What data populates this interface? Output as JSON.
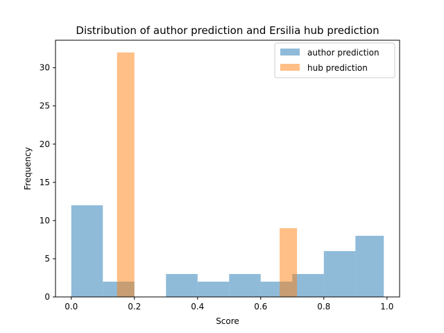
{
  "chart_data": {
    "type": "bar",
    "title": "Distribution of author prediction and Ersilia hub prediction",
    "xlabel": "Score",
    "ylabel": "Frequency",
    "xlim": [
      -0.05,
      1.04
    ],
    "ylim": [
      0,
      33.6
    ],
    "xticks": [
      "0.0",
      "0.2",
      "0.4",
      "0.6",
      "0.8",
      "1.0"
    ],
    "yticks": [
      "0",
      "5",
      "10",
      "15",
      "20",
      "25",
      "30"
    ],
    "grid": false,
    "legend_position": "top-right",
    "series": [
      {
        "name": "author prediction",
        "color": "#1f77b4",
        "opacity": 0.5,
        "bins": [
          {
            "x0": 0.0,
            "x1": 0.1,
            "count": 12
          },
          {
            "x0": 0.1,
            "x1": 0.2,
            "count": 2
          },
          {
            "x0": 0.2,
            "x1": 0.3,
            "count": 0
          },
          {
            "x0": 0.3,
            "x1": 0.4,
            "count": 3
          },
          {
            "x0": 0.4,
            "x1": 0.5,
            "count": 2
          },
          {
            "x0": 0.5,
            "x1": 0.6,
            "count": 3
          },
          {
            "x0": 0.6,
            "x1": 0.7,
            "count": 2
          },
          {
            "x0": 0.7,
            "x1": 0.8,
            "count": 3
          },
          {
            "x0": 0.8,
            "x1": 0.9,
            "count": 6
          },
          {
            "x0": 0.9,
            "x1": 0.99,
            "count": 8
          }
        ]
      },
      {
        "name": "hub prediction",
        "color": "#ff7f0e",
        "opacity": 0.5,
        "bins": [
          {
            "x0": 0.145,
            "x1": 0.2,
            "count": 32
          },
          {
            "x0": 0.2,
            "x1": 0.2555,
            "count": 0
          },
          {
            "x0": 0.2555,
            "x1": 0.311,
            "count": 0
          },
          {
            "x0": 0.311,
            "x1": 0.3665,
            "count": 0
          },
          {
            "x0": 0.3665,
            "x1": 0.422,
            "count": 0
          },
          {
            "x0": 0.422,
            "x1": 0.4775,
            "count": 0
          },
          {
            "x0": 0.4775,
            "x1": 0.533,
            "count": 0
          },
          {
            "x0": 0.533,
            "x1": 0.5885,
            "count": 0
          },
          {
            "x0": 0.5885,
            "x1": 0.644,
            "count": 0
          },
          {
            "x0": 0.66,
            "x1": 0.715,
            "count": 9
          }
        ]
      }
    ]
  }
}
